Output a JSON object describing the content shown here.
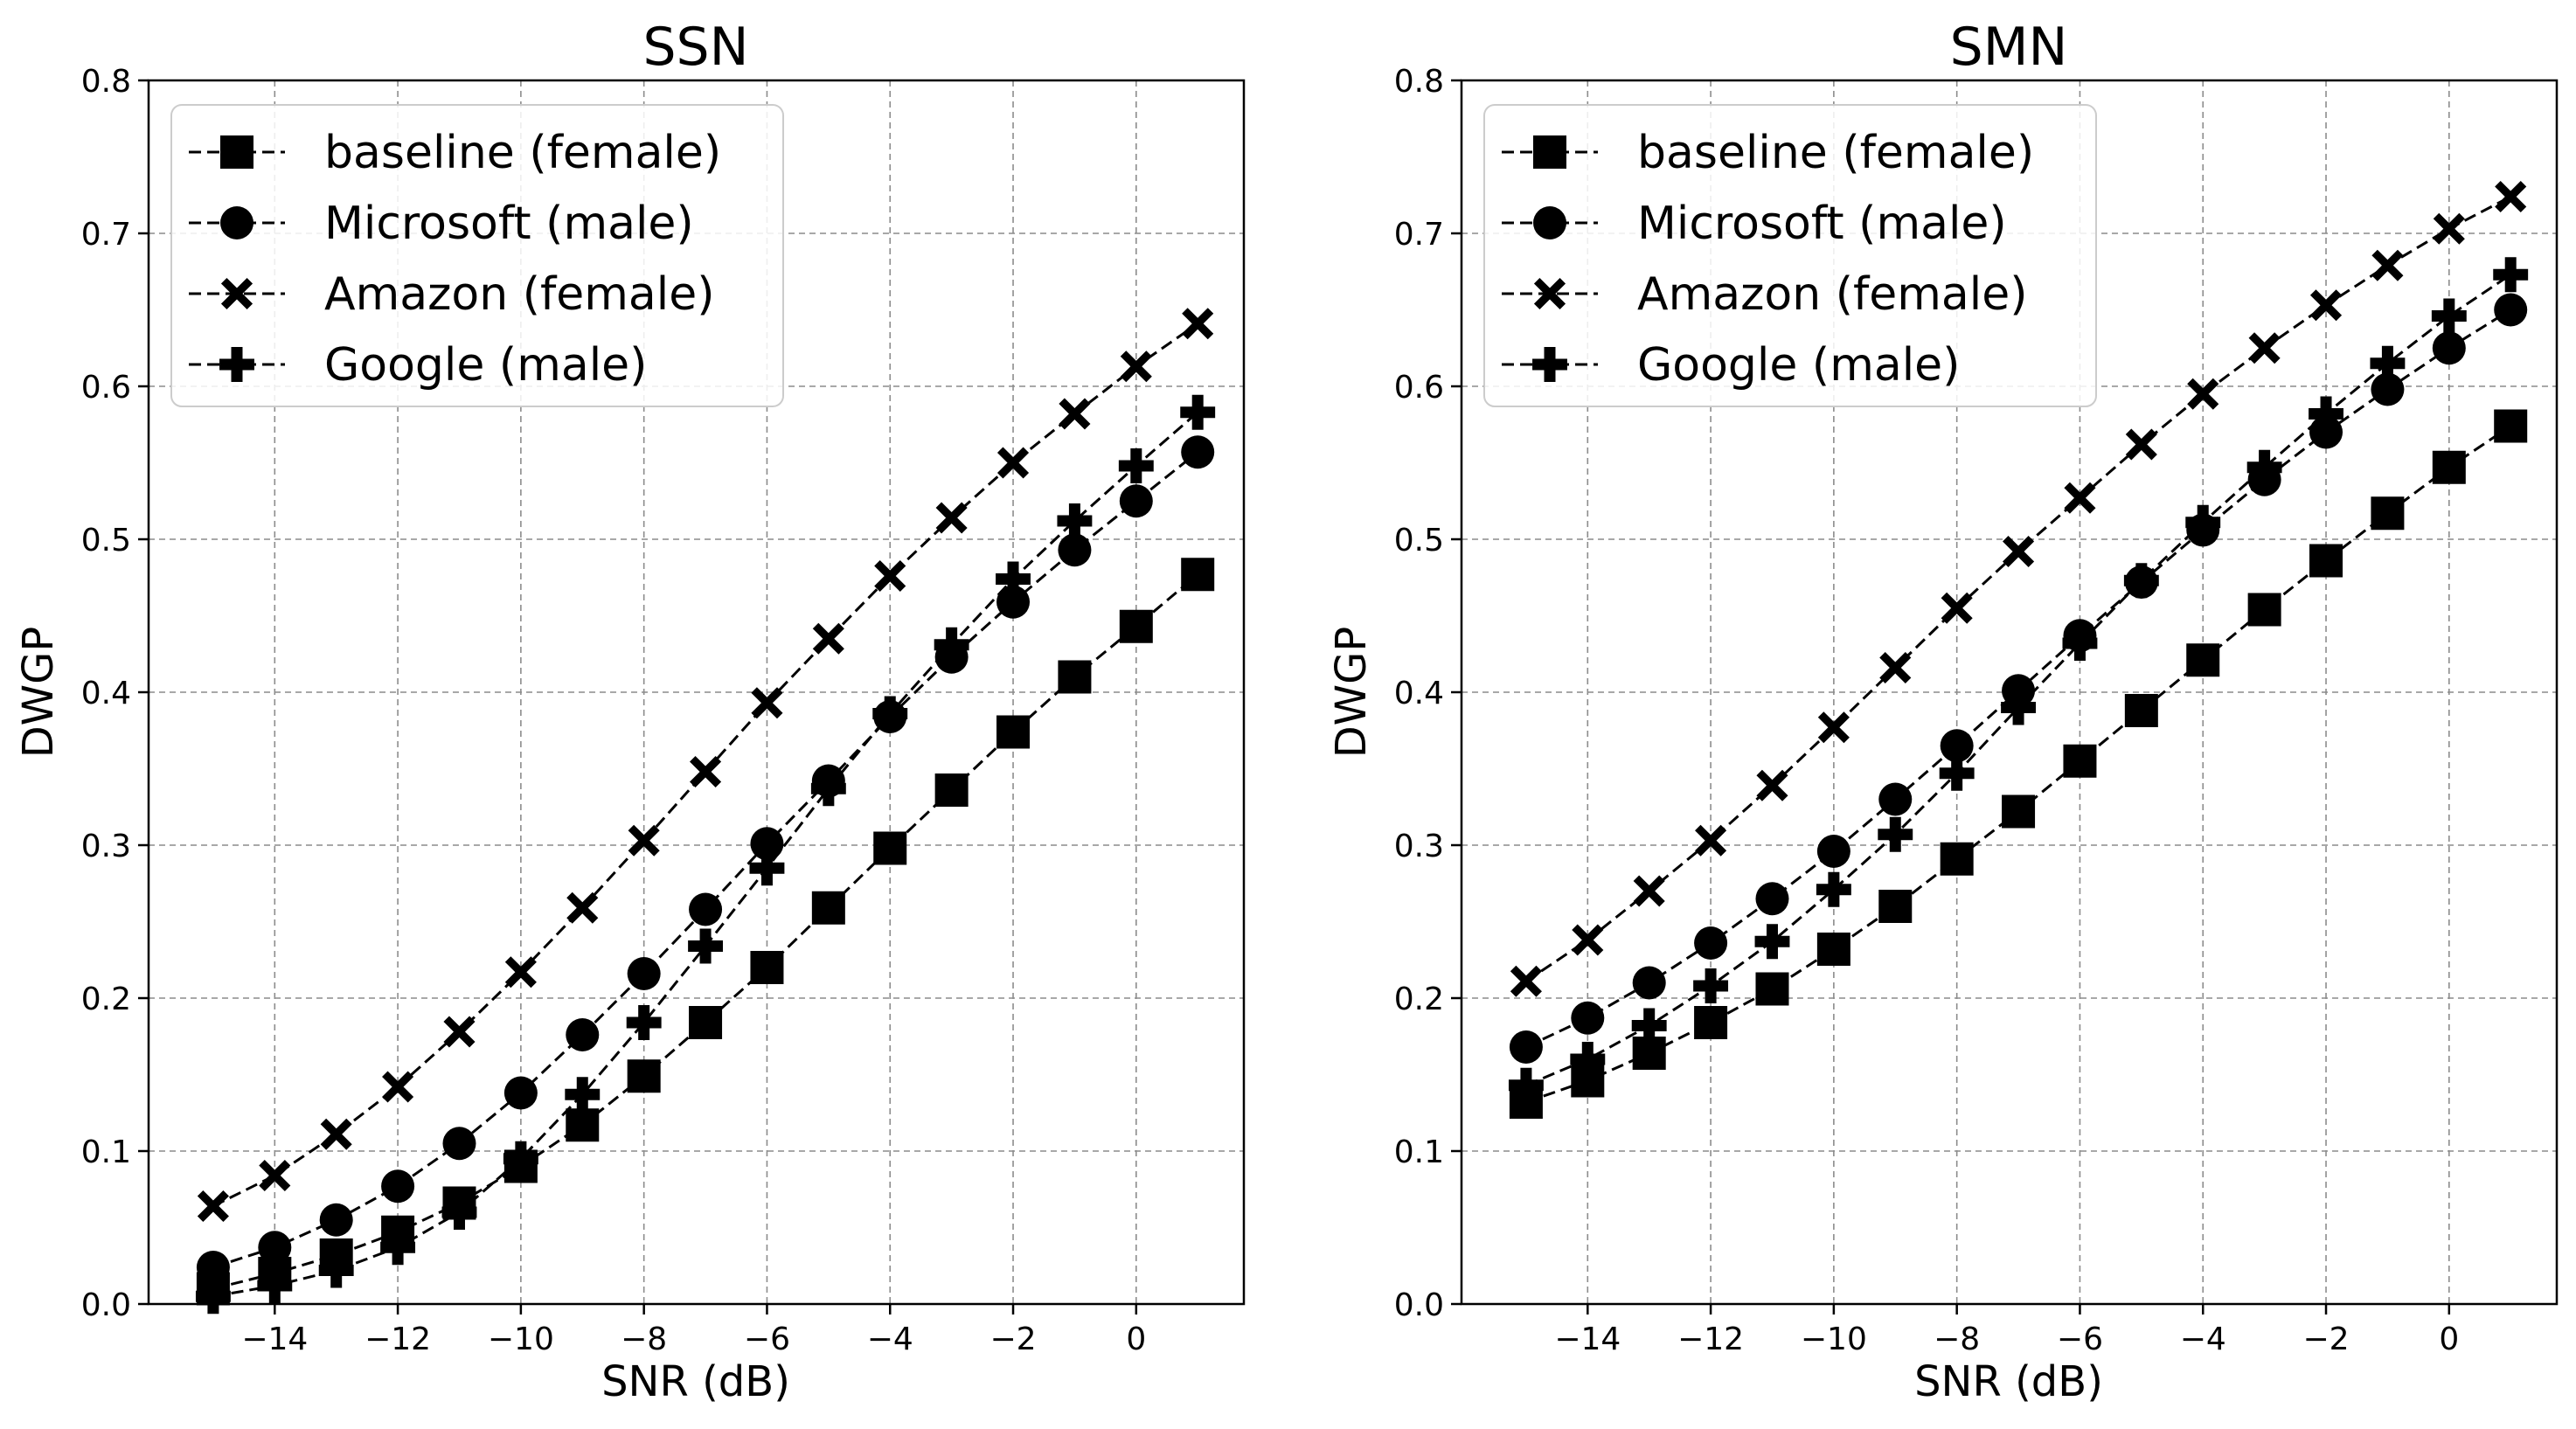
{
  "chart_data": [
    {
      "type": "line",
      "title": "SSN",
      "xlabel": "SNR (dB)",
      "ylabel": "DWGP",
      "xlim": [
        -16.05,
        1.75
      ],
      "ylim": [
        0.0,
        0.8
      ],
      "xticks": [
        -14,
        -12,
        -10,
        -8,
        -6,
        -4,
        -2,
        0
      ],
      "xtick_labels": [
        "−14",
        "−12",
        "−10",
        "−8",
        "−6",
        "−4",
        "−2",
        "0"
      ],
      "yticks": [
        0.0,
        0.1,
        0.2,
        0.3,
        0.4,
        0.5,
        0.6,
        0.7,
        0.8
      ],
      "ytick_labels": [
        "0.0",
        "0.1",
        "0.2",
        "0.3",
        "0.4",
        "0.5",
        "0.6",
        "0.7",
        "0.8"
      ],
      "grid": true,
      "legend_position": "top-left",
      "x": [
        -15,
        -14,
        -13,
        -12,
        -11,
        -10,
        -9,
        -8,
        -7,
        -6,
        -5,
        -4,
        -3,
        -2,
        -1,
        0,
        1
      ],
      "series": [
        {
          "name": "baseline (female)",
          "marker": "square",
          "values": [
            0.01,
            0.02,
            0.032,
            0.047,
            0.066,
            0.09,
            0.117,
            0.149,
            0.184,
            0.22,
            0.259,
            0.298,
            0.336,
            0.374,
            0.41,
            0.443,
            0.477
          ]
        },
        {
          "name": "Microsoft (male)",
          "marker": "circle",
          "values": [
            0.024,
            0.037,
            0.055,
            0.077,
            0.105,
            0.138,
            0.176,
            0.216,
            0.258,
            0.301,
            0.342,
            0.384,
            0.423,
            0.459,
            0.493,
            0.525,
            0.557
          ]
        },
        {
          "name": "Amazon (female)",
          "marker": "x",
          "values": [
            0.064,
            0.084,
            0.111,
            0.142,
            0.178,
            0.217,
            0.259,
            0.303,
            0.348,
            0.393,
            0.435,
            0.476,
            0.514,
            0.55,
            0.582,
            0.613,
            0.641
          ]
        },
        {
          "name": "Google (male)",
          "marker": "plus",
          "values": [
            0.005,
            0.012,
            0.022,
            0.037,
            0.06,
            0.095,
            0.137,
            0.184,
            0.234,
            0.285,
            0.337,
            0.386,
            0.431,
            0.474,
            0.512,
            0.548,
            0.583
          ]
        }
      ]
    },
    {
      "type": "line",
      "title": "SMN",
      "xlabel": "SNR (dB)",
      "ylabel": "DWGP",
      "xlim": [
        -16.05,
        1.75
      ],
      "ylim": [
        0.0,
        0.8
      ],
      "xticks": [
        -14,
        -12,
        -10,
        -8,
        -6,
        -4,
        -2,
        0
      ],
      "xtick_labels": [
        "−14",
        "−12",
        "−10",
        "−8",
        "−6",
        "−4",
        "−2",
        "0"
      ],
      "yticks": [
        0.0,
        0.1,
        0.2,
        0.3,
        0.4,
        0.5,
        0.6,
        0.7,
        0.8
      ],
      "ytick_labels": [
        "0.0",
        "0.1",
        "0.2",
        "0.3",
        "0.4",
        "0.5",
        "0.6",
        "0.7",
        "0.8"
      ],
      "grid": true,
      "legend_position": "top-left",
      "x": [
        -15,
        -14,
        -13,
        -12,
        -11,
        -10,
        -9,
        -8,
        -7,
        -6,
        -5,
        -4,
        -3,
        -2,
        -1,
        0,
        1
      ],
      "series": [
        {
          "name": "baseline (female)",
          "marker": "square",
          "values": [
            0.132,
            0.146,
            0.164,
            0.184,
            0.206,
            0.232,
            0.26,
            0.291,
            0.322,
            0.355,
            0.388,
            0.421,
            0.454,
            0.486,
            0.517,
            0.547,
            0.574
          ]
        },
        {
          "name": "Microsoft (male)",
          "marker": "circle",
          "values": [
            0.168,
            0.187,
            0.21,
            0.236,
            0.265,
            0.296,
            0.33,
            0.365,
            0.401,
            0.437,
            0.472,
            0.506,
            0.539,
            0.57,
            0.598,
            0.625,
            0.65
          ]
        },
        {
          "name": "Amazon (female)",
          "marker": "x",
          "values": [
            0.211,
            0.238,
            0.27,
            0.303,
            0.339,
            0.377,
            0.416,
            0.455,
            0.492,
            0.527,
            0.562,
            0.595,
            0.625,
            0.653,
            0.679,
            0.703,
            0.724
          ]
        },
        {
          "name": "Google (male)",
          "marker": "plus",
          "values": [
            0.143,
            0.16,
            0.182,
            0.208,
            0.237,
            0.271,
            0.307,
            0.347,
            0.39,
            0.432,
            0.473,
            0.511,
            0.547,
            0.582,
            0.615,
            0.646,
            0.673
          ]
        }
      ]
    }
  ]
}
